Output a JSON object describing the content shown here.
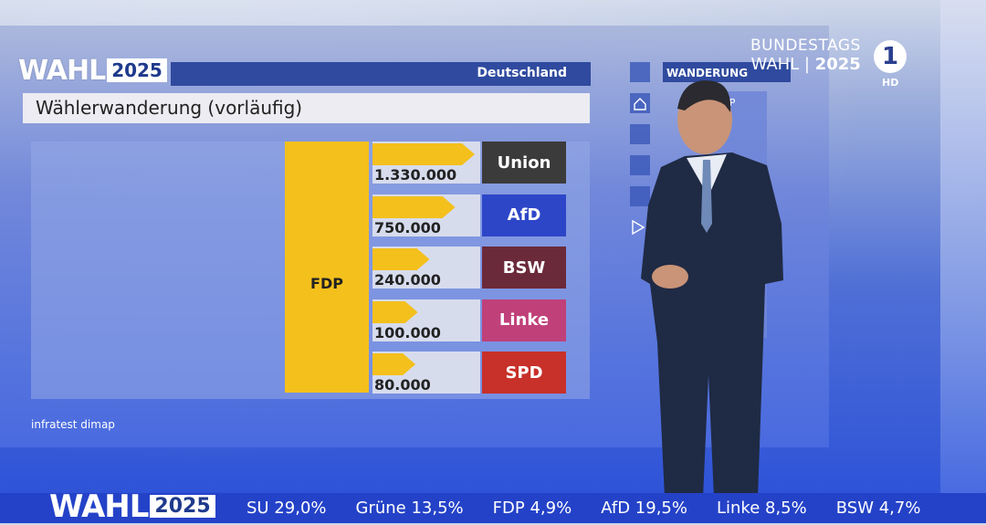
{
  "broadcast": {
    "logo_word": "WAHL",
    "logo_year": "2025",
    "channel_line1": "BUNDESTAGS",
    "channel_line2_a": "WAHL | ",
    "channel_line2_b": "2025",
    "channel_mark": "1",
    "hd": "HD"
  },
  "graphic": {
    "region": "Deutschland",
    "title": "Wählerwanderung (vorläufig)",
    "source": "infratest dimap",
    "side_panel_title": "WANDERUNG",
    "side_panel_item": "FDP"
  },
  "chart_data": {
    "type": "bar",
    "source_party": "FDP",
    "categories": [
      "Union",
      "AfD",
      "BSW",
      "Linke",
      "SPD"
    ],
    "values": [
      1330000,
      750000,
      240000,
      100000,
      80000
    ],
    "value_labels": [
      "1.330.000",
      "750.000",
      "240.000",
      "100.000",
      "80.000"
    ],
    "colors": [
      "#3b3b3b",
      "#2d46c8",
      "#6b2a3a",
      "#c0407a",
      "#c8302a"
    ],
    "bar_color": "#f4c01c",
    "title": "Wählerwanderung (vorläufig)"
  },
  "ticker": {
    "items": [
      "SU 29,0%",
      "Grüne 13,5%",
      "FDP 4,9%",
      "AfD 19,5%",
      "Linke 8,5%",
      "BSW 4,7%"
    ]
  }
}
